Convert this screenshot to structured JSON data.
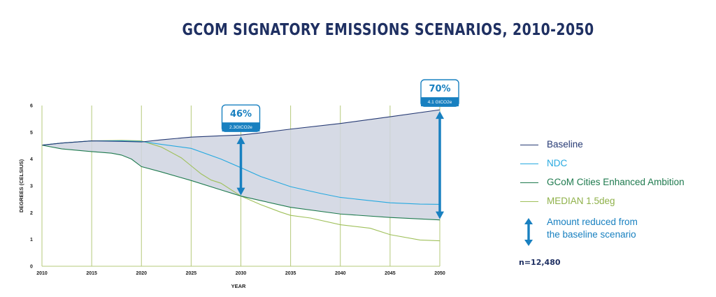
{
  "chart_data": {
    "type": "line",
    "title": "GCOM SIGNATORY EMISSIONS SCENARIOS, 2010-2050",
    "xlabel": "YEAR",
    "ylabel": "DEGREES (CELSIUS)",
    "xlim": [
      2010,
      2050
    ],
    "ylim": [
      0,
      6
    ],
    "x_ticks": [
      "2010",
      "2015",
      "2020",
      "2025",
      "2030",
      "2035",
      "2040",
      "2045",
      "2050"
    ],
    "y_ticks": [
      "0",
      "1",
      "2",
      "3",
      "4",
      "5",
      "6"
    ],
    "grid": "vertical",
    "legend_position": "right",
    "series": [
      {
        "name": "Baseline",
        "color": "#263a74",
        "x": [
          2010,
          2012,
          2015,
          2018,
          2020,
          2022,
          2025,
          2028,
          2030,
          2032,
          2035,
          2040,
          2045,
          2050
        ],
        "y": [
          4.52,
          4.6,
          4.68,
          4.66,
          4.64,
          4.72,
          4.82,
          4.87,
          4.9,
          4.98,
          5.12,
          5.33,
          5.58,
          5.84
        ]
      },
      {
        "name": "NDC",
        "color": "#26a9e0",
        "x": [
          2010,
          2012,
          2015,
          2018,
          2020,
          2022,
          2025,
          2028,
          2030,
          2032,
          2035,
          2038,
          2040,
          2045,
          2048,
          2050
        ],
        "y": [
          4.52,
          4.6,
          4.68,
          4.68,
          4.66,
          4.55,
          4.4,
          4.0,
          3.68,
          3.35,
          2.97,
          2.72,
          2.57,
          2.37,
          2.32,
          2.31
        ]
      },
      {
        "name": "GCoM Cities Enhanced Ambition",
        "color": "#1e7a4e",
        "x": [
          2010,
          2012,
          2015,
          2017,
          2018,
          2019,
          2020,
          2022,
          2025,
          2028,
          2030,
          2032,
          2035,
          2040,
          2045,
          2050
        ],
        "y": [
          4.52,
          4.38,
          4.28,
          4.22,
          4.15,
          4.0,
          3.72,
          3.52,
          3.2,
          2.85,
          2.62,
          2.45,
          2.2,
          1.95,
          1.82,
          1.73
        ]
      },
      {
        "name": "MEDIAN 1.5deg",
        "color": "#9fc05a",
        "x": [
          2010,
          2012,
          2015,
          2018,
          2020,
          2022,
          2024,
          2025,
          2026,
          2027,
          2028,
          2030,
          2032,
          2034,
          2035,
          2037,
          2040,
          2043,
          2045,
          2048,
          2050
        ],
        "y": [
          4.52,
          4.6,
          4.68,
          4.7,
          4.68,
          4.45,
          4.05,
          3.75,
          3.45,
          3.22,
          3.1,
          2.62,
          2.3,
          2.02,
          1.9,
          1.8,
          1.55,
          1.42,
          1.18,
          0.98,
          0.95
        ]
      }
    ],
    "annotations": [
      {
        "year": 2030,
        "from": 4.9,
        "to": 2.62,
        "percent": "46%",
        "value": "2.3GtCO2e"
      },
      {
        "year": 2050,
        "from": 5.84,
        "to": 1.73,
        "percent": "70%",
        "value": "4.1 GtCO2e"
      }
    ]
  },
  "legend": {
    "arrow_label_line1": "Amount reduced from",
    "arrow_label_line2": "the baseline scenario",
    "arrow_color": "#1880c0"
  },
  "sample_size": "n=12,480",
  "colors": {
    "fill": "#cfd4e1",
    "title": "#1f3062",
    "grid": "#b5c97a",
    "callout": "#1880c0"
  }
}
